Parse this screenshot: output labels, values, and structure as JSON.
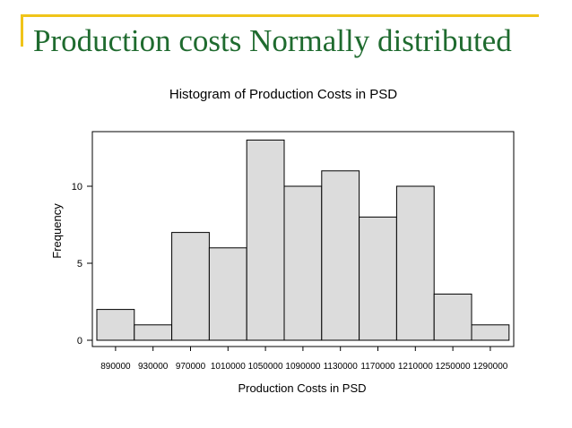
{
  "slide": {
    "title": "Production costs Normally distributed"
  },
  "colors": {
    "accent_rule": "#f0c419",
    "title_text": "#1f6b2f",
    "bar_fill": "#dcdcdc",
    "bar_stroke": "#000000"
  },
  "chart_data": {
    "type": "bar",
    "title": "Histogram of Production Costs in PSD",
    "xlabel": "Production Costs in PSD",
    "ylabel": "Frequency",
    "ylim": [
      0,
      14
    ],
    "yticks": [
      0,
      5,
      10
    ],
    "categories": [
      "890000",
      "930000",
      "970000",
      "1010000",
      "1050000",
      "1090000",
      "1130000",
      "1170000",
      "1210000",
      "1250000",
      "1290000"
    ],
    "values": [
      2,
      1,
      7,
      6,
      13,
      10,
      11,
      8,
      10,
      3,
      1
    ],
    "grid": false,
    "legend": "none"
  }
}
